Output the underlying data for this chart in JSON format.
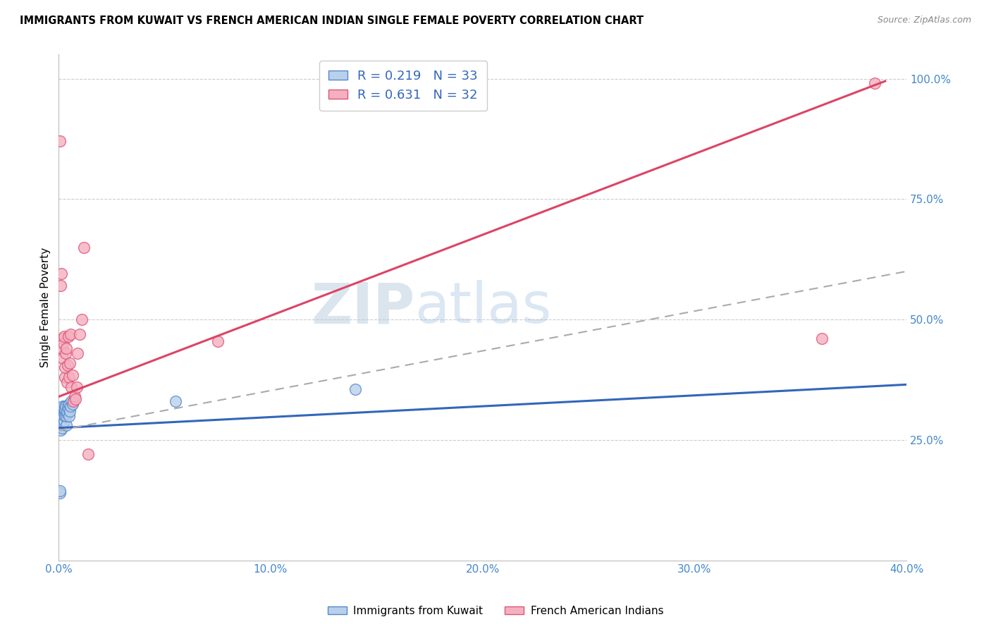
{
  "title": "IMMIGRANTS FROM KUWAIT VS FRENCH AMERICAN INDIAN SINGLE FEMALE POVERTY CORRELATION CHART",
  "source": "Source: ZipAtlas.com",
  "xlabel_ticks": [
    "0.0%",
    "10.0%",
    "20.0%",
    "30.0%",
    "40.0%"
  ],
  "xlabel_vals": [
    0.0,
    10.0,
    20.0,
    30.0,
    40.0
  ],
  "ylabel_ticks": [
    "25.0%",
    "50.0%",
    "75.0%",
    "100.0%"
  ],
  "ylabel_vals": [
    25.0,
    50.0,
    75.0,
    100.0
  ],
  "xlim": [
    0.0,
    40.0
  ],
  "ylim": [
    0.0,
    105.0
  ],
  "blue_R": 0.219,
  "blue_N": 33,
  "pink_R": 0.631,
  "pink_N": 32,
  "blue_color": "#b8d0ea",
  "pink_color": "#f5b0c0",
  "blue_edge": "#5588cc",
  "pink_edge": "#dd5577",
  "trend_blue": "#3366bb",
  "trend_pink": "#dd4466",
  "trend_gray": "#aaaaaa",
  "watermark_zip": "ZIP",
  "watermark_atlas": "atlas",
  "legend_label_blue": "Immigrants from Kuwait",
  "legend_label_pink": "French American Indians",
  "blue_x": [
    0.05,
    0.05,
    0.1,
    0.12,
    0.13,
    0.15,
    0.15,
    0.15,
    0.18,
    0.2,
    0.2,
    0.22,
    0.25,
    0.25,
    0.28,
    0.28,
    0.3,
    0.3,
    0.32,
    0.35,
    0.35,
    0.38,
    0.4,
    0.42,
    0.45,
    0.48,
    0.5,
    0.52,
    0.55,
    0.6,
    0.65,
    5.5,
    14.0
  ],
  "blue_y": [
    14.0,
    14.5,
    27.0,
    28.0,
    29.0,
    27.5,
    30.0,
    31.0,
    29.5,
    30.0,
    32.0,
    28.5,
    29.0,
    30.5,
    31.0,
    32.0,
    30.0,
    31.5,
    32.0,
    28.0,
    30.0,
    30.5,
    31.0,
    32.0,
    31.5,
    32.5,
    30.0,
    31.0,
    32.0,
    33.0,
    32.5,
    33.0,
    35.5
  ],
  "pink_x": [
    0.05,
    0.1,
    0.12,
    0.15,
    0.18,
    0.2,
    0.22,
    0.25,
    0.28,
    0.3,
    0.32,
    0.35,
    0.4,
    0.42,
    0.45,
    0.5,
    0.52,
    0.55,
    0.6,
    0.65,
    0.7,
    0.75,
    0.8,
    0.85,
    0.9,
    1.0,
    1.1,
    1.2,
    1.4,
    7.5,
    36.0,
    38.5
  ],
  "pink_y": [
    87.0,
    57.0,
    59.5,
    44.0,
    46.0,
    42.0,
    45.0,
    46.5,
    38.0,
    40.0,
    43.0,
    44.0,
    37.0,
    40.5,
    46.5,
    38.0,
    41.0,
    47.0,
    36.0,
    38.5,
    33.0,
    34.0,
    33.5,
    36.0,
    43.0,
    47.0,
    50.0,
    65.0,
    22.0,
    45.5,
    46.0,
    99.0
  ],
  "blue_trend": [
    0.0,
    40.0,
    27.5,
    36.5
  ],
  "pink_trend": [
    0.0,
    39.0,
    34.0,
    99.5
  ],
  "gray_trend": [
    0.0,
    40.0,
    27.0,
    60.0
  ]
}
